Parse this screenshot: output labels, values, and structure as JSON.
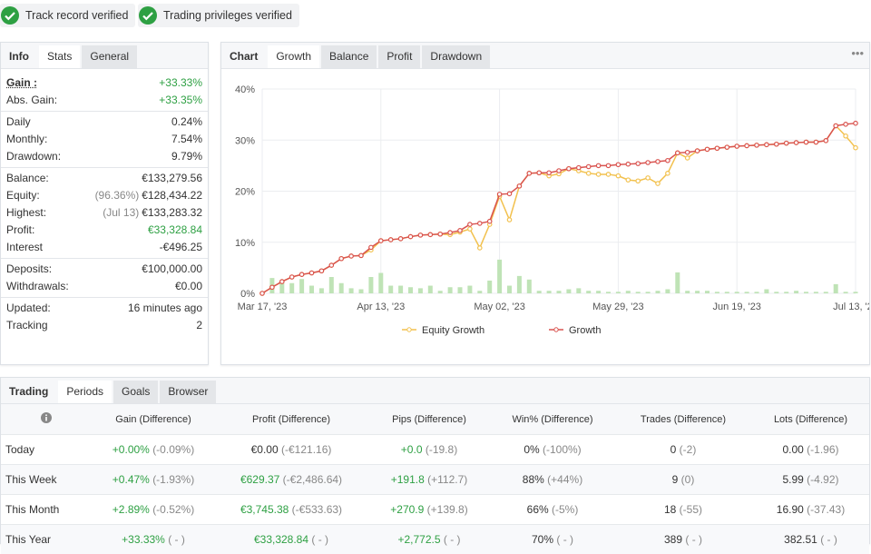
{
  "badges": [
    "Track record verified",
    "Trading privileges verified"
  ],
  "info": {
    "tabs": [
      "Info",
      "Stats",
      "General"
    ],
    "groups": [
      [
        {
          "label": "Gain :",
          "value": "+33.33%",
          "color": "#2ea043",
          "strong": true
        },
        {
          "label": "Abs. Gain:",
          "value": "+33.35%",
          "color": "#2ea043"
        }
      ],
      [
        {
          "label": "Daily",
          "value": "0.24%"
        },
        {
          "label": "Monthly:",
          "value": "7.54%"
        },
        {
          "label": "Drawdown:",
          "value": "9.79%"
        }
      ],
      [
        {
          "label": "Balance:",
          "value": "€133,279.56"
        },
        {
          "label": "Equity:",
          "note": "(96.36%)",
          "value": "€128,434.22"
        },
        {
          "label": "Highest:",
          "note": "(Jul 13)",
          "value": "€133,283.32"
        },
        {
          "label": "Profit:",
          "value": "€33,328.84",
          "color": "#2ea043"
        },
        {
          "label": "Interest",
          "value": "-€496.25"
        }
      ],
      [
        {
          "label": "Deposits:",
          "value": "€100,000.00"
        },
        {
          "label": "Withdrawals:",
          "value": "€0.00"
        }
      ],
      [
        {
          "label": "Updated:",
          "value": "16 minutes ago"
        },
        {
          "label": "Tracking",
          "value": "2"
        }
      ]
    ]
  },
  "chart_panel": {
    "tabs": [
      "Chart",
      "Growth",
      "Balance",
      "Profit",
      "Drawdown"
    ],
    "menu": "•••"
  },
  "chart": {
    "type": "line",
    "categories": [
      "Mar 17, '23",
      null,
      null,
      null,
      null,
      null,
      null,
      null,
      null,
      null,
      null,
      null,
      "Apr 13, '23",
      null,
      null,
      null,
      null,
      null,
      null,
      null,
      null,
      null,
      null,
      null,
      "May 02, '23",
      null,
      null,
      null,
      null,
      null,
      null,
      null,
      null,
      null,
      null,
      null,
      "May 29, '23",
      null,
      null,
      null,
      null,
      null,
      null,
      null,
      null,
      null,
      null,
      null,
      "Jun 19, '23",
      null,
      null,
      null,
      null,
      null,
      null,
      null,
      null,
      null,
      null,
      null,
      "Jul 13, '23"
    ],
    "ylim": [
      0,
      40
    ],
    "yticks": [
      {
        "value": 0,
        "label": "0%"
      },
      {
        "value": 10,
        "label": "10%"
      },
      {
        "value": 20,
        "label": "20%"
      },
      {
        "value": 30,
        "label": "30%"
      },
      {
        "value": 40,
        "label": "40%"
      }
    ],
    "grid": true,
    "series": [
      {
        "type": "bar",
        "color": "#bfe3b6",
        "values": [
          0.3,
          3,
          2.5,
          2,
          2.8,
          1.5,
          1,
          3.2,
          2,
          1,
          0.8,
          3.2,
          4,
          1.5,
          1.5,
          1.2,
          1,
          1.5,
          0.5,
          1.2,
          1.2,
          1.5,
          0.5,
          2.5,
          6.6,
          1.5,
          3.4,
          2.7,
          0.5,
          0.5,
          0.5,
          0.8,
          1,
          0.5,
          0.5,
          0.3,
          0.3,
          0.5,
          0.3,
          0.3,
          0.5,
          0.8,
          4.1,
          0.5,
          0.5,
          0.5,
          0.3,
          0.3,
          0.3,
          0.3,
          0.3,
          0.8,
          0.3,
          0.3,
          0.5,
          0.3,
          0.3,
          0.3,
          1.8,
          0.3,
          0.3
        ]
      },
      {
        "name": "Equity Growth",
        "color": "#f2c14e",
        "values": [
          0,
          1.2,
          2.3,
          3.2,
          3.7,
          4.0,
          4.4,
          5.5,
          6.8,
          7.3,
          7.4,
          8.5,
          10.3,
          10.5,
          10.7,
          11.1,
          11.4,
          11.5,
          11.6,
          11.5,
          12.0,
          12.6,
          8.9,
          13.5,
          19.0,
          14.4,
          21.0,
          23.5,
          23.6,
          23.0,
          23.4,
          24.4,
          24.0,
          23.5,
          23.3,
          23.3,
          23.0,
          22.2,
          22.0,
          22.6,
          21.5,
          23.5,
          27.5,
          26.5,
          27.9,
          28.2,
          28.4,
          28.6,
          28.8,
          28.9,
          29.0,
          29.1,
          29.2,
          29.4,
          29.5,
          29.6,
          29.6,
          29.9,
          32.8,
          30.8,
          28.5
        ]
      },
      {
        "name": "Growth",
        "color": "#d9534f",
        "values": [
          0,
          1.2,
          2.3,
          3.2,
          3.7,
          4.0,
          4.4,
          5.5,
          6.8,
          7.3,
          7.4,
          9.0,
          10.3,
          10.5,
          10.7,
          11.1,
          11.4,
          11.5,
          11.6,
          11.9,
          12.3,
          13.5,
          13.7,
          14.1,
          19.4,
          19.5,
          21.0,
          23.5,
          23.6,
          23.6,
          24.0,
          24.4,
          24.6,
          24.8,
          25.0,
          25.0,
          25.2,
          25.3,
          25.4,
          25.6,
          25.8,
          26.0,
          27.5,
          27.6,
          27.9,
          28.2,
          28.4,
          28.6,
          28.8,
          28.9,
          29.0,
          29.1,
          29.2,
          29.4,
          29.5,
          29.6,
          29.6,
          29.9,
          32.8,
          33.1,
          33.3
        ]
      }
    ]
  },
  "trading": {
    "tabs": [
      "Trading",
      "Periods",
      "Goals",
      "Browser"
    ],
    "headers": [
      "Gain (Difference)",
      "Profit (Difference)",
      "Pips (Difference)",
      "Win% (Difference)",
      "Trades (Difference)",
      "Lots (Difference)"
    ],
    "rows": [
      {
        "label": "Today",
        "cells": [
          {
            "value": "+0.00%",
            "diff": "(-0.09%)",
            "color": "#2ea043"
          },
          {
            "value": "€0.00",
            "diff": "(-€121.16)"
          },
          {
            "value": "+0.0",
            "diff": "(-19.8)",
            "color": "#2ea043"
          },
          {
            "value": "0%",
            "diff": "(-100%)"
          },
          {
            "value": "0",
            "diff": "(-2)"
          },
          {
            "value": "0.00",
            "diff": "(-1.96)"
          }
        ]
      },
      {
        "label": "This Week",
        "cells": [
          {
            "value": "+0.47%",
            "diff": "(-1.93%)",
            "color": "#2ea043"
          },
          {
            "value": "€629.37",
            "diff": "(-€2,486.64)",
            "color": "#2ea043"
          },
          {
            "value": "+191.8",
            "diff": "(+112.7)",
            "color": "#2ea043"
          },
          {
            "value": "88%",
            "diff": "(+44%)"
          },
          {
            "value": "9",
            "diff": "(0)"
          },
          {
            "value": "5.99",
            "diff": "(-4.92)"
          }
        ]
      },
      {
        "label": "This Month",
        "cells": [
          {
            "value": "+2.89%",
            "diff": "(-0.52%)",
            "color": "#2ea043"
          },
          {
            "value": "€3,745.38",
            "diff": "(-€533.63)",
            "color": "#2ea043"
          },
          {
            "value": "+270.9",
            "diff": "(+139.8)",
            "color": "#2ea043"
          },
          {
            "value": "66%",
            "diff": "(-5%)"
          },
          {
            "value": "18",
            "diff": "(-55)"
          },
          {
            "value": "16.90",
            "diff": "(-37.43)"
          }
        ]
      },
      {
        "label": "This Year",
        "cells": [
          {
            "value": "+33.33%",
            "diff": "( - )",
            "color": "#2ea043"
          },
          {
            "value": "€33,328.84",
            "diff": "( - )",
            "color": "#2ea043"
          },
          {
            "value": "+2,772.5",
            "diff": "( - )",
            "color": "#2ea043"
          },
          {
            "value": "70%",
            "diff": "( - )"
          },
          {
            "value": "389",
            "diff": "( - )"
          },
          {
            "value": "382.51",
            "diff": "( - )"
          }
        ]
      }
    ]
  }
}
